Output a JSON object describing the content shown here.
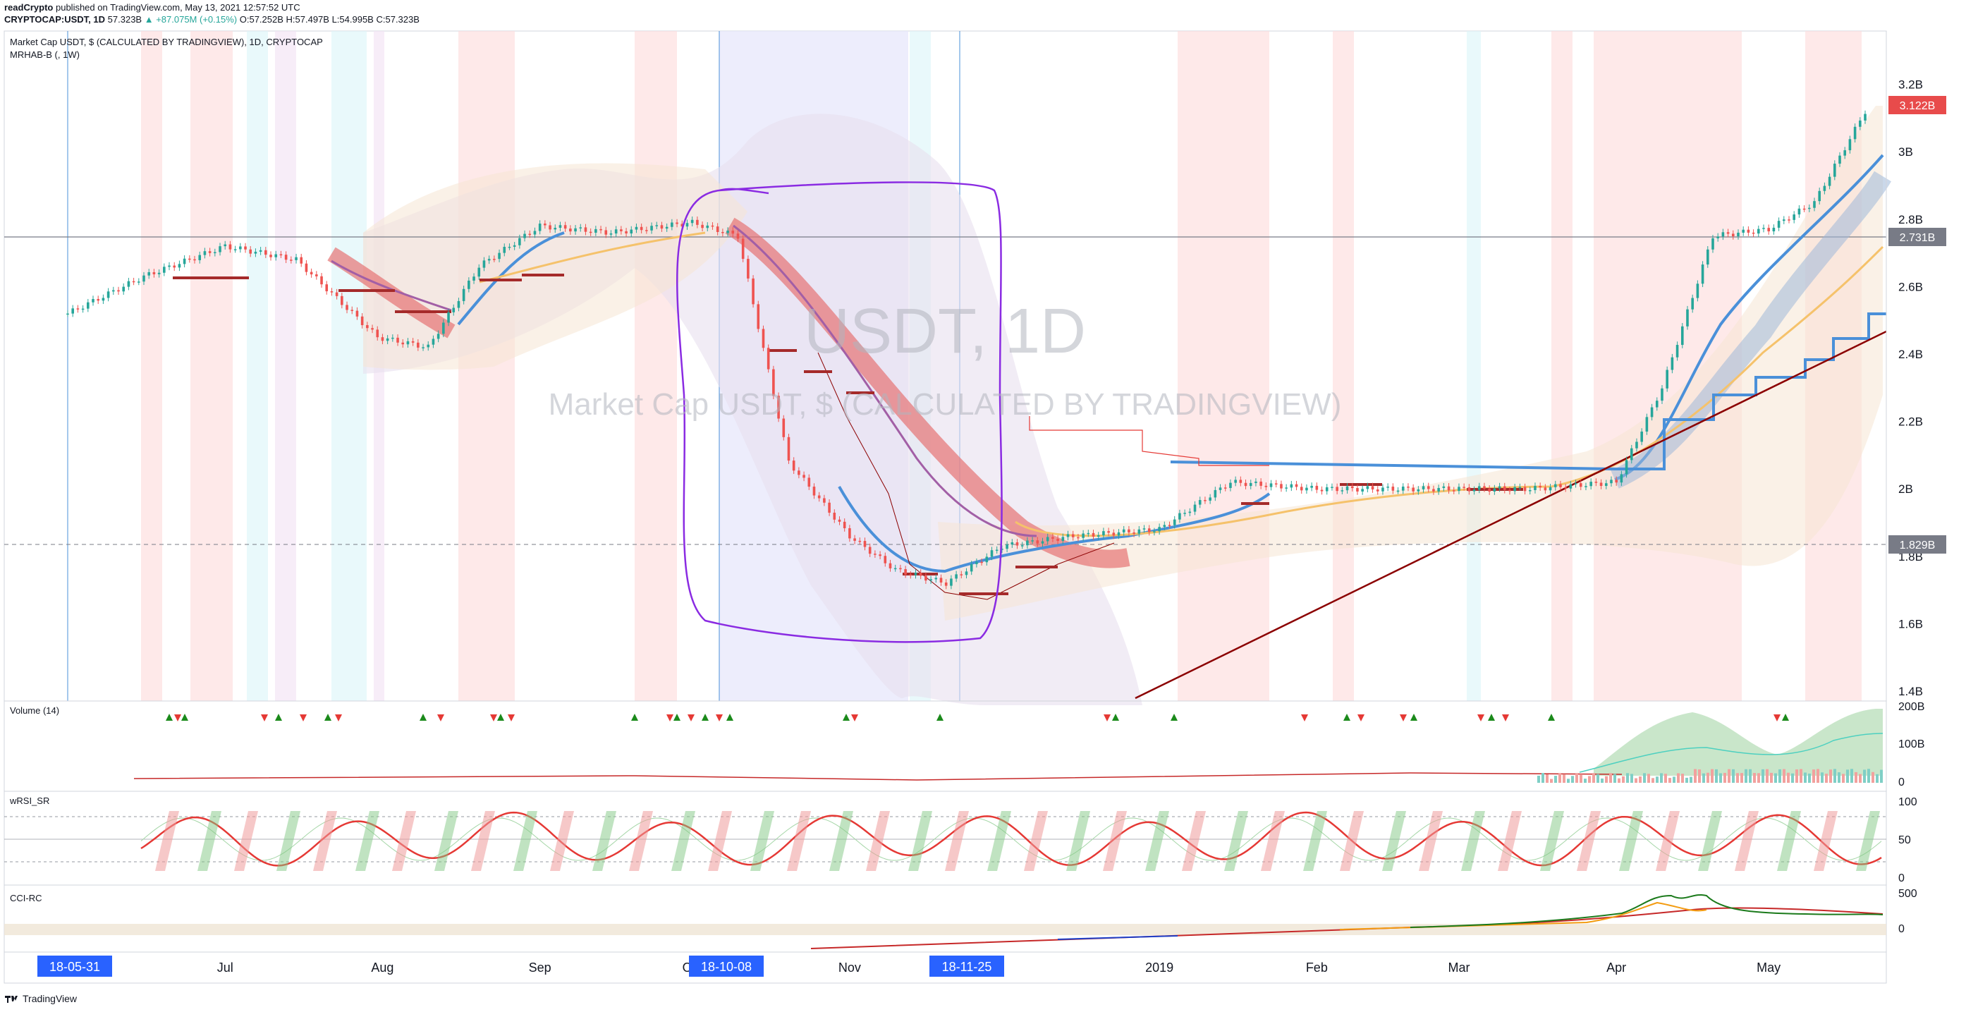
{
  "header": {
    "publisher": "readCrypto",
    "published_text": "published on TradingView.com, May 13, 2021 12:57:52 UTC",
    "symbol_line_prefix": "CRYPTOCAP:USDT, 1D",
    "last": "57.323B",
    "change": "▲ +87.075M (+0.15%)",
    "ohlc_o": "O:57.252B",
    "ohlc_h": "H:57.497B",
    "ohlc_l": "L:54.995B",
    "ohlc_c": "C:57.323B"
  },
  "legend": {
    "title": "Market Cap USDT, $ (CALCULATED BY TRADINGVIEW), 1D, CRYPTOCAP",
    "indicator": "MRHAB-B (, 1W)"
  },
  "watermark": {
    "big": "USDT, 1D",
    "small": "Market Cap USDT, $ (CALCULATED BY TRADINGVIEW)"
  },
  "panes": {
    "volume_title": "Volume (14)",
    "wrsi_title": "wRSI_SR",
    "cci_title": "CCI-RC"
  },
  "price_badges": {
    "last": "3.122B",
    "hline": "2.731B",
    "dashed": "1.829B"
  },
  "footer": {
    "brand": "TradingView"
  },
  "colors": {
    "up": "#26a69a",
    "down": "#ef5350",
    "blue_line": "#4a90d9",
    "orange_line": "#f5c26b",
    "purple_line": "#a25fa6",
    "red_band": "#e57373",
    "cyan_band": "#80deea",
    "trend_line": "#8b0000",
    "annotation": "#8a2be2",
    "badge_last": "#e84b4b",
    "badge_grey": "#787b86",
    "axis_badge_blue": "#2962ff"
  },
  "chart_data": {
    "type": "candlestick",
    "y_axis": {
      "unit": "USD market cap",
      "ticks": [
        "3.2B",
        "3B",
        "2.8B",
        "2.6B",
        "2.4B",
        "2.2B",
        "2B",
        "1.8B",
        "1.6B",
        "1.4B"
      ],
      "range": [
        1.4,
        3.22
      ]
    },
    "x_axis": {
      "ticks": [
        "Jul",
        "Aug",
        "Sep",
        "Oct",
        "Nov",
        "2019",
        "Feb",
        "Mar",
        "Apr",
        "May"
      ],
      "highlighted_dates": [
        "18-05-31",
        "18-10-08",
        "18-11-25"
      ]
    },
    "volume_axis": [
      "200B",
      "100B",
      "0"
    ],
    "wrsi_axis": [
      "100",
      "50",
      "0"
    ],
    "cci_axis": [
      "500",
      "0"
    ],
    "close_series_approx": {
      "x": [
        "2018-05-31",
        "2018-06-15",
        "2018-07-01",
        "2018-07-15",
        "2018-07-31",
        "2018-08-10",
        "2018-08-20",
        "2018-09-01",
        "2018-09-15",
        "2018-10-01",
        "2018-10-10",
        "2018-10-20",
        "2018-11-01",
        "2018-11-10",
        "2018-11-20",
        "2018-12-01",
        "2018-12-15",
        "2019-01-01",
        "2019-01-15",
        "2019-02-01",
        "2019-02-15",
        "2019-03-01",
        "2019-03-15",
        "2019-04-01",
        "2019-04-10",
        "2019-04-20",
        "2019-05-01",
        "2019-05-10",
        "2019-05-20"
      ],
      "y": [
        2.52,
        2.63,
        2.72,
        2.68,
        2.45,
        2.42,
        2.66,
        2.78,
        2.76,
        2.79,
        2.75,
        2.08,
        1.86,
        1.76,
        1.72,
        1.83,
        1.86,
        1.88,
        2.02,
        2.0,
        2.0,
        2.0,
        2.0,
        2.02,
        2.3,
        2.75,
        2.77,
        2.85,
        3.12
      ]
    }
  }
}
